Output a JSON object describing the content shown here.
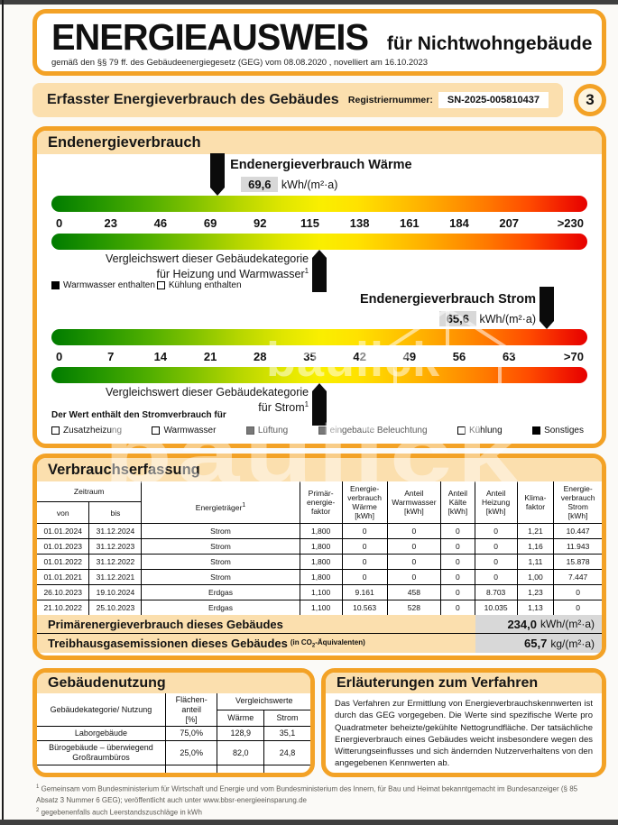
{
  "page": {
    "number": "3"
  },
  "colors": {
    "accent_orange": "#F3A226",
    "band_peach": "#FBDFAE",
    "value_gray": "#D8D8D8",
    "scale_green": "#007B00",
    "scale_yellow": "#F9EF00",
    "scale_red": "#E60000"
  },
  "header": {
    "title": "ENERGIEAUSWEIS",
    "title_suffix": "für Nichtwohngebäude",
    "subtitle": "gemäß den §§ 79 ff. des Gebäudeenergiegesetz (GEG) vom 08.08.2020 , novelliert am 16.10.2023"
  },
  "banner": {
    "title": "Erfasster Energieverbrauch des Gebäudes",
    "reg_label": "Registriernummer:",
    "reg_number": "SN-2025-005810437"
  },
  "endenergie": {
    "section_title": "Endenergieverbrauch",
    "waerme": {
      "label": "Endenergieverbrauch Wärme",
      "value": "69,6",
      "unit": "kWh/(m²·a)",
      "ticks": [
        "0",
        "23",
        "46",
        "69",
        "92",
        "115",
        "138",
        "161",
        "184",
        "207",
        ">230"
      ],
      "vergleich_line1": "Vergleichswert dieser Gebäudekategorie",
      "vergleich_line2": "für Heizung und Warmwasser",
      "vergleich_sup": "1"
    },
    "waerme_legend": [
      {
        "label": "Warmwasser enthalten",
        "fill": "filled"
      },
      {
        "label": "Kühlung enthalten",
        "fill": "empty"
      }
    ],
    "strom": {
      "label": "Endenergieverbrauch Strom",
      "value": "65,6",
      "unit": "kWh/(m²·a)",
      "ticks": [
        "0",
        "7",
        "14",
        "21",
        "28",
        "35",
        "42",
        "49",
        "56",
        "63",
        ">70"
      ],
      "vergleich_line1": "Vergleichswert dieser Gebäudekategorie",
      "vergleich_line2": "für Strom",
      "vergleich_sup": "1"
    },
    "stromverbrauch_note": "Der Wert enthält den Stromverbrauch für",
    "strom_legend": [
      {
        "label": "Zusatzheizung",
        "fill": "empty"
      },
      {
        "label": "Warmwasser",
        "fill": "empty"
      },
      {
        "label": "Lüftung",
        "fill": "muted-filled",
        "muted": true
      },
      {
        "label": "eingebaute Beleuchtung",
        "fill": "muted-filled",
        "muted": true
      },
      {
        "label": "Kühlung",
        "fill": "empty"
      },
      {
        "label": "Sonstiges",
        "fill": "filled"
      }
    ]
  },
  "verbrauch": {
    "section_title": "Verbrauchserfassung",
    "table": {
      "col_zeitraum": "Zeitraum",
      "col_von": "von",
      "col_bis": "bis",
      "col_energietraeger": "Energieträger",
      "col_energietraeger_sup": "1",
      "col_pef": "Primär-\nenergie-\nfaktor",
      "col_ev_waerme": "Energie-\nverbrauch\nWärme\n[kWh]",
      "col_ww": "Anteil\nWarmwasser\n[kWh]",
      "col_kaelte": "Anteil\nKälte\n[kWh]",
      "col_heizung": "Anteil\nHeizung\n[kWh]",
      "col_klima": "Klima-\nfaktor",
      "col_ev_strom": "Energie-\nverbrauch\nStrom\n[kWh]",
      "rows": [
        [
          "01.01.2024",
          "31.12.2024",
          "Strom",
          "1,800",
          "0",
          "0",
          "0",
          "0",
          "1,21",
          "10.447"
        ],
        [
          "01.01.2023",
          "31.12.2023",
          "Strom",
          "1,800",
          "0",
          "0",
          "0",
          "0",
          "1,16",
          "11.943"
        ],
        [
          "01.01.2022",
          "31.12.2022",
          "Strom",
          "1,800",
          "0",
          "0",
          "0",
          "0",
          "1,11",
          "15.878"
        ],
        [
          "01.01.2021",
          "31.12.2021",
          "Strom",
          "1,800",
          "0",
          "0",
          "0",
          "0",
          "1,00",
          "7.447"
        ],
        [
          "26.10.2023",
          "19.10.2024",
          "Erdgas",
          "1,100",
          "9.161",
          "458",
          "0",
          "8.703",
          "1,23",
          "0"
        ],
        [
          "21.10.2022",
          "25.10.2023",
          "Erdgas",
          "1,100",
          "10.563",
          "528",
          "0",
          "10.035",
          "1,13",
          "0"
        ]
      ]
    },
    "primaer_label": "Primärenergieverbrauch dieses Gebäudes",
    "primaer_value": "234,0",
    "primaer_unit": "kWh/(m²·a)",
    "treibhaus_label": "Treibhausgasemissionen dieses Gebäudes",
    "treibhaus_note_pre": "(in CO",
    "treibhaus_note_sub": "2",
    "treibhaus_note_post": "-Äquivalenten)",
    "treibhaus_value": "65,7",
    "treibhaus_unit": "kg/(m²·a)"
  },
  "nutzung": {
    "section_title": "Gebäudenutzung",
    "col_kategorie": "Gebäudekategorie/ Nutzung",
    "col_flaeche": "Flächen-\nanteil\n[%]",
    "col_vergleich": "Vergleichswerte",
    "col_waerme": "Wärme",
    "col_strom": "Strom",
    "rows": [
      [
        "Laborgebäude",
        "75,0%",
        "128,9",
        "35,1"
      ],
      [
        "Bürogebäude – überwiegend Großraumbüros",
        "25,0%",
        "82,0",
        "24,8"
      ],
      [
        "",
        "",
        "",
        ""
      ]
    ]
  },
  "erlaeuterungen": {
    "section_title": "Erläuterungen zum Verfahren",
    "text": "Das Verfahren zur Ermittlung von Energieverbrauchskennwerten ist durch das GEG vorgegeben. Die Werte sind spezifische Werte pro Quadratmeter beheizte/gekühlte Nettogrundfläche. Der tatsächliche Energieverbrauch eines Gebäudes weicht insbesondere wegen des Witterungseinflusses und sich ändernden Nutzerverhaltens von den angegebenen Kennwerten ab."
  },
  "footnotes": [
    {
      "sup": "1",
      "text": "Gemeinsam vom Bundesministerium für Wirtschaft und Energie und vom Bundesministerium des Innern, für Bau und Heimat bekanntgemacht im Bundesanzeiger (§ 85 Absatz 3 Nummer 6 GEG); veröffentlicht auch unter www.bbsr-energieeinsparung.de"
    },
    {
      "sup": "2",
      "text": "gegebenenfalls auch Leerstandszuschläge in kWh"
    }
  ],
  "watermark": {
    "text": "baulick"
  }
}
